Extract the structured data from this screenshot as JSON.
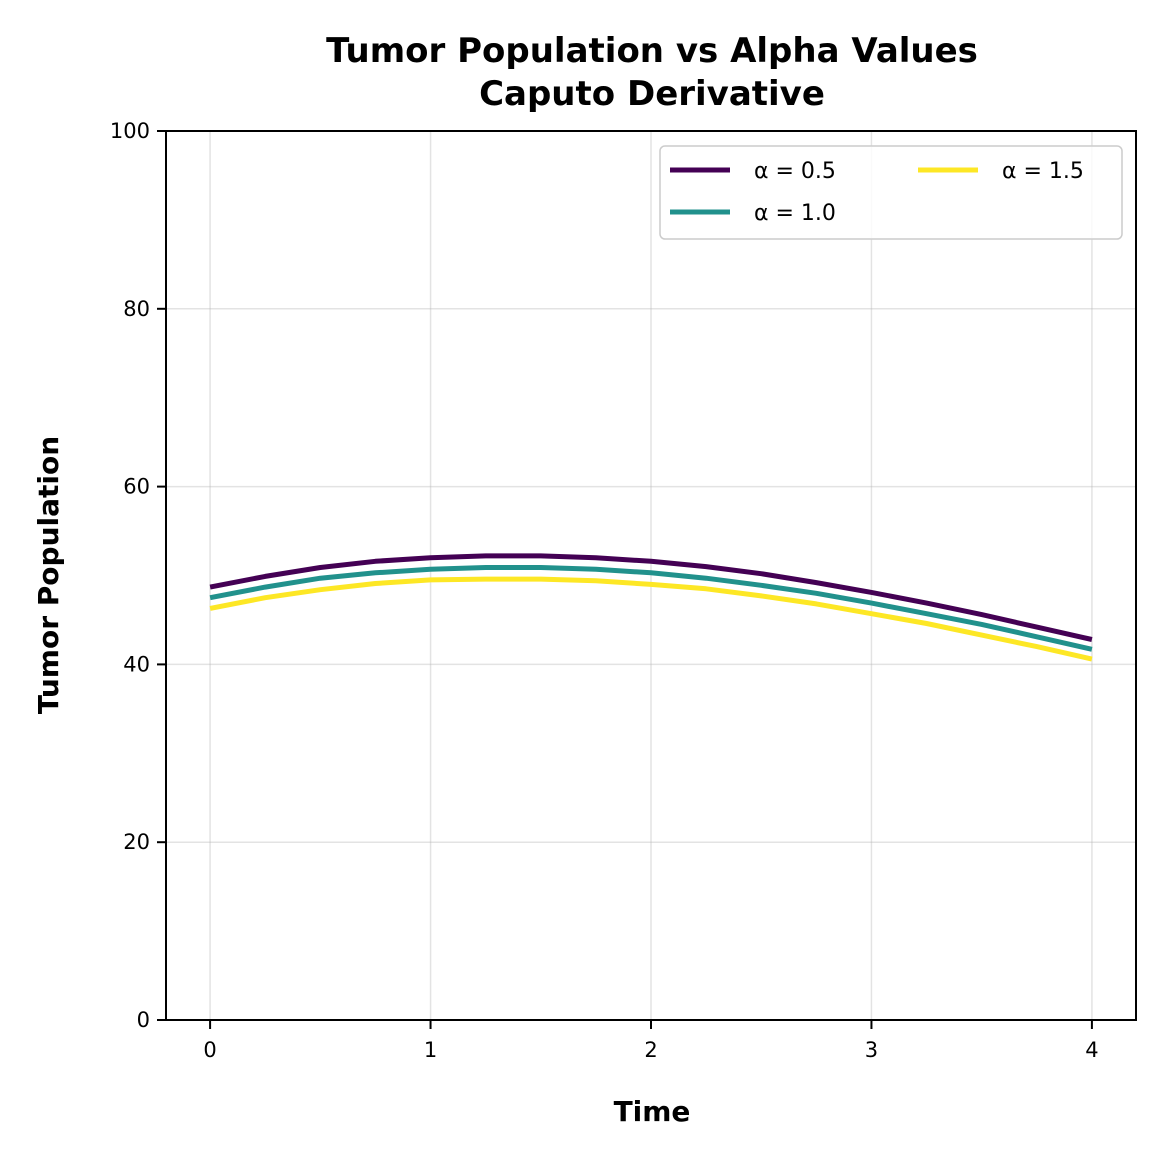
{
  "chart_data": {
    "type": "line",
    "title": "Tumor Population vs Alpha Values",
    "subtitle": "Caputo Derivative",
    "xlabel": "Time",
    "ylabel": "Tumor Population",
    "xlim": [
      -0.2,
      4.2
    ],
    "ylim": [
      0,
      100
    ],
    "xticks": [
      0,
      1,
      2,
      3,
      4
    ],
    "yticks": [
      0,
      20,
      40,
      60,
      80,
      100
    ],
    "grid": true,
    "legend_position": "top-right",
    "x": [
      0,
      0.25,
      0.5,
      0.75,
      1.0,
      1.25,
      1.5,
      1.75,
      2.0,
      2.25,
      2.5,
      2.75,
      3.0,
      3.25,
      3.5,
      3.75,
      4.0
    ],
    "series": [
      {
        "name": "α = 0.5",
        "color": "#440154",
        "values": [
          48.7,
          49.9,
          50.9,
          51.6,
          52.0,
          52.2,
          52.2,
          52.0,
          51.6,
          51.0,
          50.2,
          49.2,
          48.1,
          46.9,
          45.6,
          44.2,
          42.8
        ]
      },
      {
        "name": "α = 1.0",
        "color": "#21918c",
        "values": [
          47.5,
          48.7,
          49.7,
          50.3,
          50.7,
          50.9,
          50.9,
          50.7,
          50.3,
          49.7,
          48.9,
          48.0,
          46.9,
          45.7,
          44.5,
          43.1,
          41.7
        ]
      },
      {
        "name": "α = 1.5",
        "color": "#fde725",
        "values": [
          46.3,
          47.5,
          48.4,
          49.1,
          49.5,
          49.6,
          49.6,
          49.4,
          49.0,
          48.5,
          47.7,
          46.8,
          45.7,
          44.6,
          43.3,
          42.0,
          40.6
        ]
      }
    ]
  }
}
